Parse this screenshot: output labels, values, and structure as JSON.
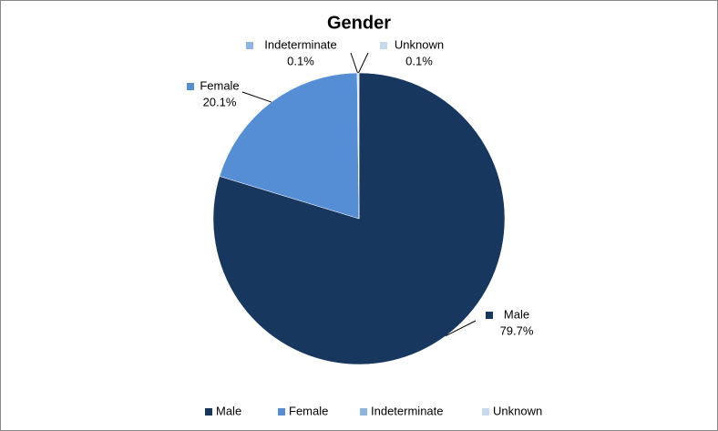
{
  "chart_data": {
    "type": "pie",
    "title": "Gender",
    "categories": [
      "Male",
      "Female",
      "Indeterminate",
      "Unknown"
    ],
    "values": [
      79.7,
      20.1,
      0.1,
      0.1
    ],
    "value_labels": [
      "79.7%",
      "20.1%",
      "0.1%",
      "0.1%"
    ],
    "colors": [
      "#17375e",
      "#558ed5",
      "#8eb4e3",
      "#c6d9f1"
    ],
    "legend": "bottom"
  }
}
